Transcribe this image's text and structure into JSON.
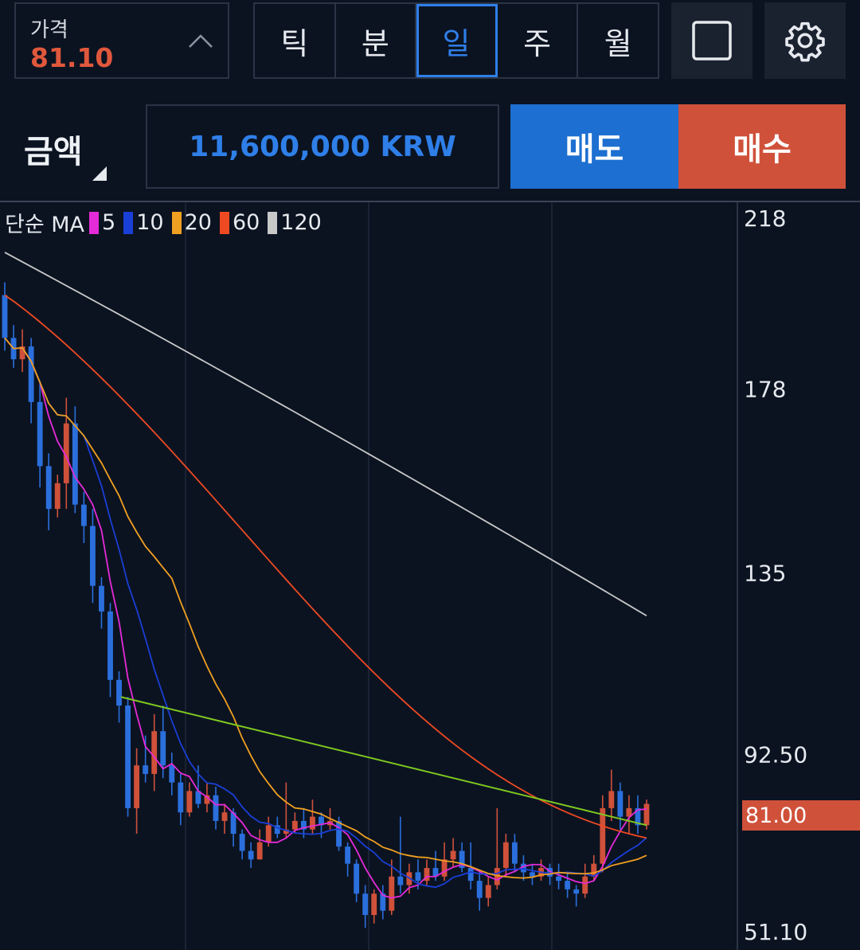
{
  "header": {
    "price_label": "가격",
    "price_value": "81.10",
    "tabs": [
      {
        "label": "틱",
        "active": false
      },
      {
        "label": "분",
        "active": false
      },
      {
        "label": "일",
        "active": true
      },
      {
        "label": "주",
        "active": false
      },
      {
        "label": "월",
        "active": false
      }
    ],
    "icons": [
      "square-icon",
      "gear-icon"
    ]
  },
  "order": {
    "amount_label": "금액",
    "amount_value": "11,600,000 KRW",
    "sell_label": "매도",
    "buy_label": "매수"
  },
  "chart": {
    "legend_title": "단순 MA",
    "ma_lines": [
      {
        "label": "5",
        "color": "#e52ad8"
      },
      {
        "label": "10",
        "color": "#1a3fd6"
      },
      {
        "label": "20",
        "color": "#f0a020"
      },
      {
        "label": "60",
        "color": "#ee4a22"
      },
      {
        "label": "120",
        "color": "#c8c8c8"
      }
    ],
    "y_axis_labels": [
      "218",
      "178",
      "135",
      "92.50",
      "51.10"
    ],
    "current_price_tag": "81.00",
    "colors": {
      "up": "#d0513a",
      "down": "#2b6fdc",
      "trendline": "#7ec820"
    }
  },
  "chart_data": {
    "type": "candlestick",
    "ylim": [
      51.1,
      218
    ],
    "yticks": [
      218,
      178,
      135,
      92.5,
      51.1
    ],
    "trendline": {
      "from": 106,
      "to": 76
    },
    "candles": [
      [
        200,
        190,
        203,
        187
      ],
      [
        190,
        185,
        193,
        183
      ],
      [
        185,
        188,
        192,
        182
      ],
      [
        188,
        175,
        190,
        170
      ],
      [
        175,
        160,
        180,
        155
      ],
      [
        160,
        150,
        163,
        145
      ],
      [
        150,
        156,
        158,
        148
      ],
      [
        156,
        170,
        176,
        150
      ],
      [
        170,
        151,
        174,
        149
      ],
      [
        151,
        146,
        154,
        142
      ],
      [
        146,
        132,
        150,
        128
      ],
      [
        132,
        126,
        134,
        122
      ],
      [
        126,
        110,
        128,
        106
      ],
      [
        110,
        104,
        112,
        100
      ],
      [
        104,
        80,
        106,
        78
      ],
      [
        80,
        90,
        94,
        74
      ],
      [
        90,
        88,
        97,
        86
      ],
      [
        88,
        98,
        102,
        84
      ],
      [
        98,
        90,
        104,
        87
      ],
      [
        90,
        86,
        93,
        83
      ],
      [
        86,
        79,
        88,
        76
      ],
      [
        79,
        84,
        86,
        78
      ],
      [
        84,
        81,
        90,
        80
      ],
      [
        81,
        83,
        86,
        79
      ],
      [
        83,
        77,
        85,
        75
      ],
      [
        77,
        79,
        81,
        74
      ],
      [
        79,
        74,
        80,
        71
      ],
      [
        74,
        70,
        75,
        68
      ],
      [
        70,
        68,
        72,
        66
      ],
      [
        68,
        72,
        75,
        68
      ],
      [
        72,
        76,
        78,
        71
      ],
      [
        76,
        74,
        78,
        73
      ],
      [
        74,
        75,
        86,
        73
      ],
      [
        75,
        77,
        79,
        74
      ],
      [
        77,
        75,
        80,
        73
      ],
      [
        75,
        78,
        82,
        74
      ],
      [
        78,
        76,
        79,
        73
      ],
      [
        76,
        77,
        80,
        75
      ],
      [
        77,
        71,
        78,
        70
      ],
      [
        71,
        67,
        72,
        64
      ],
      [
        67,
        60,
        68,
        58
      ],
      [
        60,
        55,
        62,
        52
      ],
      [
        55,
        60,
        61,
        53
      ],
      [
        60,
        56,
        62,
        54
      ],
      [
        56,
        64,
        68,
        55
      ],
      [
        64,
        62,
        78,
        60
      ],
      [
        62,
        65,
        67,
        60
      ],
      [
        65,
        63,
        68,
        61
      ],
      [
        63,
        66,
        68,
        62
      ],
      [
        66,
        64,
        70,
        63
      ],
      [
        64,
        68,
        72,
        63
      ],
      [
        68,
        70,
        73,
        66
      ],
      [
        70,
        66,
        72,
        65
      ],
      [
        66,
        63,
        72,
        61
      ],
      [
        63,
        59,
        65,
        56
      ],
      [
        59,
        62,
        64,
        57
      ],
      [
        62,
        66,
        80,
        61
      ],
      [
        66,
        72,
        74,
        64
      ],
      [
        72,
        67,
        74,
        65
      ],
      [
        67,
        65,
        69,
        63
      ],
      [
        65,
        64,
        67,
        62
      ],
      [
        64,
        66,
        68,
        63
      ],
      [
        66,
        64,
        67,
        62
      ],
      [
        64,
        63,
        67,
        61
      ],
      [
        63,
        61,
        65,
        59
      ],
      [
        61,
        60,
        62,
        57
      ],
      [
        60,
        64,
        67,
        59
      ],
      [
        64,
        67,
        69,
        63
      ],
      [
        67,
        80,
        83,
        65
      ],
      [
        80,
        84,
        89,
        77
      ],
      [
        84,
        78,
        86,
        75
      ],
      [
        78,
        80,
        83,
        74
      ],
      [
        80,
        76,
        83,
        74
      ],
      [
        76,
        81,
        82,
        75
      ]
    ]
  }
}
